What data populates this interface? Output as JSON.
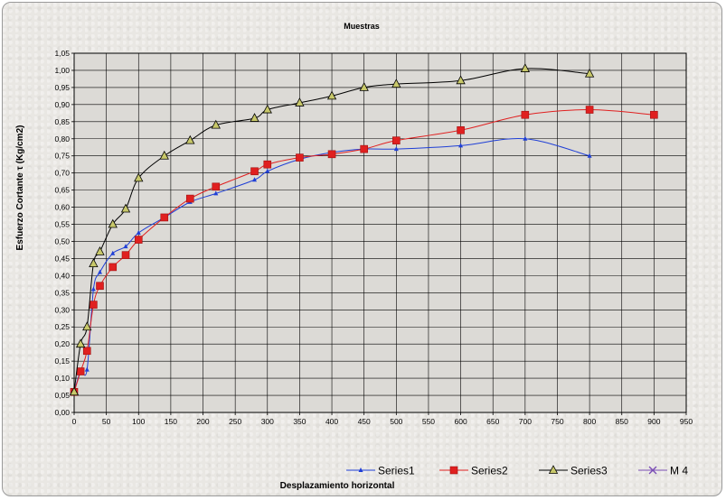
{
  "chart_data": {
    "type": "line",
    "title": "Muestras",
    "xlabel": "Desplazamiento horizontal",
    "ylabel": "Esfuerzo Cortante τ (Kg/cm2)",
    "xlim": [
      0,
      950
    ],
    "ylim": [
      0,
      1.05
    ],
    "xticks": [
      "0",
      "50",
      "100",
      "150",
      "200",
      "250",
      "300",
      "350",
      "400",
      "450",
      "500",
      "550",
      "600",
      "650",
      "700",
      "750",
      "800",
      "850",
      "900",
      "950"
    ],
    "yticks": [
      "0,00",
      "0,05",
      "0,10",
      "0,15",
      "0,20",
      "0,25",
      "0,30",
      "0,35",
      "0,40",
      "0,45",
      "0,50",
      "0,55",
      "0,60",
      "0,65",
      "0,70",
      "0,75",
      "0,80",
      "0,85",
      "0,90",
      "0,95",
      "1,00",
      "1,05"
    ],
    "grid": true,
    "legend_position": "bottom-right",
    "series": [
      {
        "name": "Series1",
        "color": "#1f3fd6",
        "marker": "tick",
        "points": [
          [
            0,
            0.06
          ],
          [
            10,
            0.12
          ],
          [
            20,
            0.125
          ],
          [
            30,
            0.36
          ],
          [
            40,
            0.41
          ],
          [
            60,
            0.465
          ],
          [
            80,
            0.485
          ],
          [
            100,
            0.525
          ],
          [
            140,
            0.57
          ],
          [
            180,
            0.615
          ],
          [
            220,
            0.64
          ],
          [
            280,
            0.68
          ],
          [
            300,
            0.705
          ],
          [
            350,
            0.74
          ],
          [
            400,
            0.76
          ],
          [
            450,
            0.77
          ],
          [
            500,
            0.77
          ],
          [
            600,
            0.78
          ],
          [
            700,
            0.8
          ],
          [
            800,
            0.75
          ]
        ]
      },
      {
        "name": "Series2",
        "color": "#e02020",
        "marker": "square",
        "points": [
          [
            0,
            0.06
          ],
          [
            10,
            0.12
          ],
          [
            20,
            0.18
          ],
          [
            30,
            0.315
          ],
          [
            40,
            0.37
          ],
          [
            60,
            0.425
          ],
          [
            80,
            0.46
          ],
          [
            100,
            0.505
          ],
          [
            140,
            0.57
          ],
          [
            180,
            0.625
          ],
          [
            220,
            0.66
          ],
          [
            280,
            0.705
          ],
          [
            300,
            0.725
          ],
          [
            350,
            0.745
          ],
          [
            400,
            0.755
          ],
          [
            450,
            0.77
          ],
          [
            500,
            0.795
          ],
          [
            600,
            0.825
          ],
          [
            700,
            0.87
          ],
          [
            800,
            0.885
          ],
          [
            900,
            0.87
          ]
        ]
      },
      {
        "name": "Series3",
        "color": "#000000",
        "marker": "triangle",
        "points": [
          [
            0,
            0.06
          ],
          [
            10,
            0.2
          ],
          [
            20,
            0.25
          ],
          [
            30,
            0.435
          ],
          [
            40,
            0.47
          ],
          [
            60,
            0.55
          ],
          [
            80,
            0.595
          ],
          [
            100,
            0.685
          ],
          [
            140,
            0.75
          ],
          [
            180,
            0.795
          ],
          [
            220,
            0.84
          ],
          [
            280,
            0.86
          ],
          [
            300,
            0.885
          ],
          [
            350,
            0.905
          ],
          [
            400,
            0.925
          ],
          [
            450,
            0.95
          ],
          [
            500,
            0.96
          ],
          [
            600,
            0.97
          ],
          [
            700,
            1.005
          ],
          [
            800,
            0.99
          ]
        ]
      },
      {
        "name": "M 4",
        "color": "#7b4fb5",
        "marker": "x",
        "points": []
      }
    ]
  }
}
